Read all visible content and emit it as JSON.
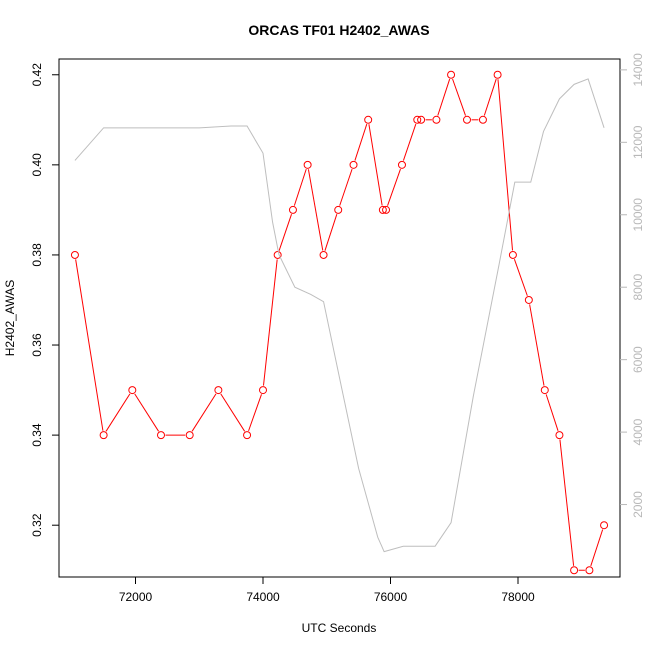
{
  "chart_data": {
    "type": "line",
    "title": "ORCAS TF01 H2402_AWAS",
    "xlabel": "UTC Seconds",
    "ylabel": "H2402_AWAS",
    "xlim": [
      70800,
      79600
    ],
    "ylim": [
      0.3085,
      0.4235
    ],
    "y2lim": [
      0,
      14300
    ],
    "x_ticks": [
      72000,
      74000,
      76000,
      78000
    ],
    "x_tick_labels": [
      "72000",
      "74000",
      "76000",
      "78000"
    ],
    "y_ticks": [
      0.32,
      0.34,
      0.36,
      0.38,
      0.4,
      0.42
    ],
    "y_tick_labels": [
      "0.32",
      "0.34",
      "0.36",
      "0.38",
      "0.40",
      "0.42"
    ],
    "y2_ticks": [
      2000,
      4000,
      6000,
      8000,
      10000,
      12000,
      14000
    ],
    "y2_tick_labels": [
      "2000",
      "4000",
      "6000",
      "8000",
      "10000",
      "12000",
      "14000"
    ],
    "grid": false,
    "series": [
      {
        "axis": "left",
        "color": "#ff0000",
        "marker": "open-circle",
        "x": [
          71050,
          71500,
          71950,
          72400,
          72850,
          73300,
          73750,
          74000,
          74230,
          74470,
          74700,
          74950,
          75180,
          75420,
          75650,
          75880,
          75930,
          76180,
          76420,
          76480,
          76720,
          76950,
          77200,
          77450,
          77680,
          77920,
          78170,
          78420,
          78650,
          78880,
          79120,
          79350
        ],
        "y": [
          0.38,
          0.34,
          0.35,
          0.34,
          0.34,
          0.35,
          0.34,
          0.35,
          0.38,
          0.39,
          0.4,
          0.38,
          0.39,
          0.4,
          0.41,
          0.39,
          0.39,
          0.4,
          0.41,
          0.41,
          0.41,
          0.42,
          0.41,
          0.41,
          0.42,
          0.38,
          0.37,
          0.35,
          0.34,
          0.31,
          0.31,
          0.32
        ]
      },
      {
        "axis": "right",
        "color": "#bebebe",
        "marker": "none",
        "x": [
          71050,
          71500,
          72000,
          73000,
          73500,
          73750,
          74000,
          74150,
          74250,
          74500,
          74750,
          74950,
          75200,
          75500,
          75800,
          75900,
          76200,
          76500,
          76700,
          76950,
          77300,
          77700,
          77950,
          78200,
          78400,
          78650,
          78880,
          79100,
          79350
        ],
        "y": [
          11500,
          12400,
          12400,
          12400,
          12450,
          12450,
          11700,
          9800,
          8900,
          8000,
          7800,
          7600,
          5500,
          3000,
          1100,
          700,
          850,
          850,
          850,
          1500,
          5000,
          8600,
          10900,
          10900,
          12300,
          13200,
          13600,
          13750,
          12400
        ]
      }
    ]
  }
}
